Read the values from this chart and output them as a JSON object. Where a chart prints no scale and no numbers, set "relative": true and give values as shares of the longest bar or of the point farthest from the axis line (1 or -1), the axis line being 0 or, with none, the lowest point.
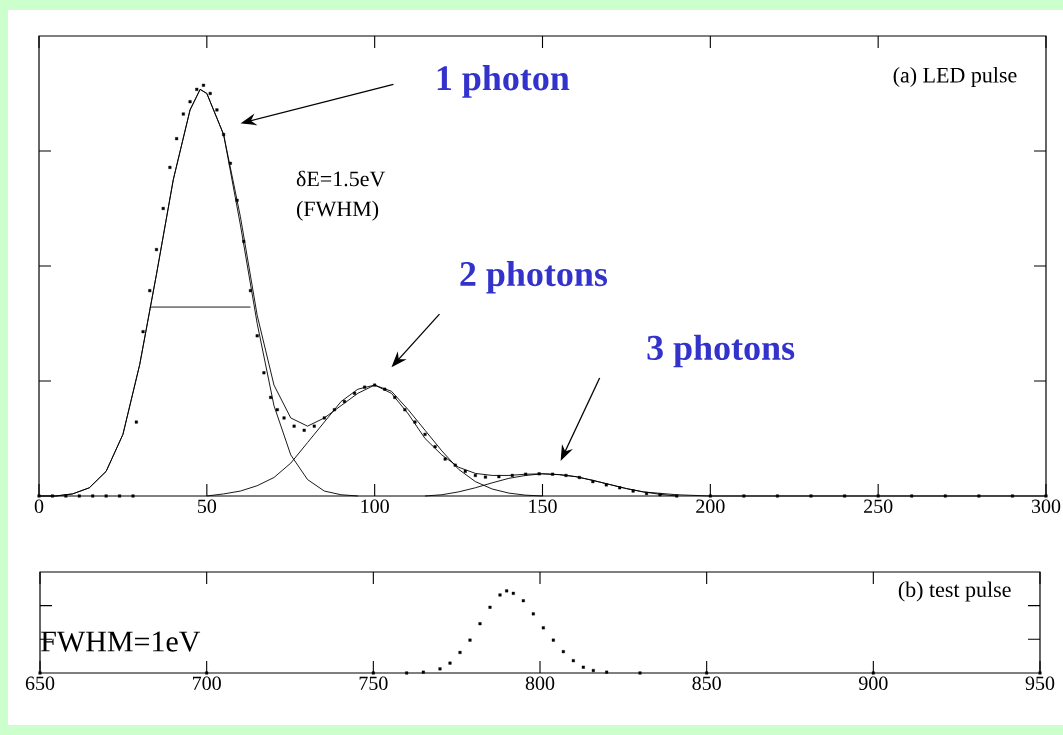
{
  "chart_data": [
    {
      "type": "line",
      "title": "(a) LED pulse",
      "relative": true,
      "tick_labels": "x",
      "xlim": [
        0,
        300
      ],
      "xticks": [
        0,
        50,
        100,
        150,
        200,
        250,
        300
      ],
      "series": [
        {
          "type": "scatter",
          "marker": "square",
          "color": "#000000",
          "x": [
            0,
            4,
            8,
            12,
            16,
            20,
            24,
            28,
            29,
            31,
            33,
            35,
            37,
            39,
            41,
            43,
            45,
            47,
            49,
            51,
            53,
            55,
            57,
            59,
            61,
            63,
            65,
            67,
            69,
            71,
            73,
            76,
            79,
            82,
            85,
            88,
            91,
            94,
            97,
            100,
            103,
            106,
            109,
            112,
            115,
            118,
            121,
            124,
            127,
            130,
            133,
            137,
            141,
            145,
            149,
            153,
            157,
            161,
            165,
            169,
            173,
            177,
            181,
            185,
            190,
            200,
            210,
            220,
            230,
            240,
            250,
            260,
            270,
            280,
            290,
            300
          ],
          "values": [
            0,
            0,
            0,
            0,
            0,
            0,
            0,
            0,
            0.18,
            0.4,
            0.5,
            0.6,
            0.7,
            0.8,
            0.87,
            0.93,
            0.96,
            0.99,
            1.0,
            0.98,
            0.94,
            0.88,
            0.81,
            0.72,
            0.62,
            0.5,
            0.39,
            0.3,
            0.24,
            0.21,
            0.19,
            0.17,
            0.16,
            0.17,
            0.19,
            0.21,
            0.23,
            0.25,
            0.265,
            0.27,
            0.26,
            0.24,
            0.21,
            0.18,
            0.15,
            0.12,
            0.09,
            0.075,
            0.06,
            0.05,
            0.046,
            0.047,
            0.05,
            0.053,
            0.054,
            0.053,
            0.05,
            0.045,
            0.035,
            0.027,
            0.02,
            0.012,
            0.006,
            0.003,
            0,
            0,
            0,
            0,
            0,
            0,
            0,
            0,
            0,
            0,
            0,
            0
          ]
        },
        {
          "type": "line",
          "color": "#000000",
          "x": [
            0,
            5,
            10,
            15,
            20,
            25,
            30,
            35,
            40,
            45,
            48,
            50,
            55,
            60,
            65,
            70,
            75,
            80,
            85,
            90,
            95,
            100,
            105,
            110,
            115,
            120,
            125,
            130,
            135,
            140,
            145,
            150,
            155,
            160,
            165,
            170,
            175,
            180,
            190,
            200,
            300
          ],
          "values": [
            0,
            0,
            0.005,
            0.02,
            0.06,
            0.15,
            0.32,
            0.54,
            0.77,
            0.94,
            0.99,
            0.98,
            0.88,
            0.68,
            0.44,
            0.27,
            0.19,
            0.17,
            0.19,
            0.22,
            0.25,
            0.27,
            0.25,
            0.2,
            0.14,
            0.1,
            0.07,
            0.055,
            0.05,
            0.05,
            0.053,
            0.054,
            0.052,
            0.047,
            0.038,
            0.028,
            0.018,
            0.01,
            0.003,
            0,
            0
          ]
        },
        {
          "type": "line",
          "color": "#000000",
          "x": [
            0,
            5,
            10,
            15,
            20,
            25,
            30,
            35,
            40,
            45,
            48,
            50,
            55,
            60,
            65,
            70,
            75,
            80,
            85,
            90,
            95
          ],
          "values": [
            0,
            0,
            0.005,
            0.02,
            0.06,
            0.15,
            0.32,
            0.54,
            0.77,
            0.94,
            0.99,
            0.98,
            0.88,
            0.66,
            0.42,
            0.22,
            0.1,
            0.04,
            0.012,
            0.003,
            0
          ]
        },
        {
          "type": "line",
          "color": "#000000",
          "x": [
            50,
            55,
            60,
            65,
            70,
            75,
            80,
            85,
            90,
            95,
            100,
            105,
            110,
            115,
            120,
            125,
            130,
            135,
            140,
            145,
            150
          ],
          "values": [
            0,
            0.005,
            0.012,
            0.025,
            0.045,
            0.08,
            0.13,
            0.18,
            0.23,
            0.26,
            0.27,
            0.255,
            0.21,
            0.16,
            0.11,
            0.065,
            0.035,
            0.017,
            0.007,
            0.002,
            0
          ]
        },
        {
          "type": "line",
          "color": "#000000",
          "x": [
            115,
            120,
            125,
            130,
            135,
            140,
            145,
            150,
            155,
            160,
            165,
            170,
            175,
            180,
            185,
            190
          ],
          "values": [
            0,
            0.003,
            0.01,
            0.02,
            0.032,
            0.043,
            0.05,
            0.054,
            0.052,
            0.047,
            0.038,
            0.028,
            0.018,
            0.01,
            0.004,
            0
          ]
        },
        {
          "type": "line",
          "color": "#000000",
          "x": [
            33,
            63
          ],
          "values": [
            0.46,
            0.46
          ]
        }
      ],
      "annotations": [
        "1 photon",
        "2 photons",
        "3 photons",
        "δE=1.5eV",
        "(FWHM)"
      ]
    },
    {
      "type": "scatter",
      "title": "(b) test pulse",
      "relative": true,
      "marker": "square",
      "tick_labels": "x",
      "xlim": [
        650,
        950
      ],
      "xticks": [
        650,
        700,
        750,
        800,
        850,
        900,
        950
      ],
      "series": [
        {
          "color": "#000000",
          "x": [
            650,
            700,
            750,
            760,
            765,
            770,
            773,
            776,
            779,
            782,
            785,
            788,
            790,
            792,
            795,
            798,
            801,
            804,
            807,
            810,
            813,
            816,
            820,
            830,
            850,
            900,
            950
          ],
          "values": [
            0,
            0,
            0,
            0,
            0.01,
            0.05,
            0.12,
            0.25,
            0.4,
            0.6,
            0.8,
            0.95,
            1.0,
            0.97,
            0.88,
            0.72,
            0.55,
            0.4,
            0.26,
            0.15,
            0.07,
            0.03,
            0.01,
            0,
            0,
            0,
            0
          ]
        }
      ],
      "annotations": [
        "FWHM=1eV"
      ]
    }
  ]
}
